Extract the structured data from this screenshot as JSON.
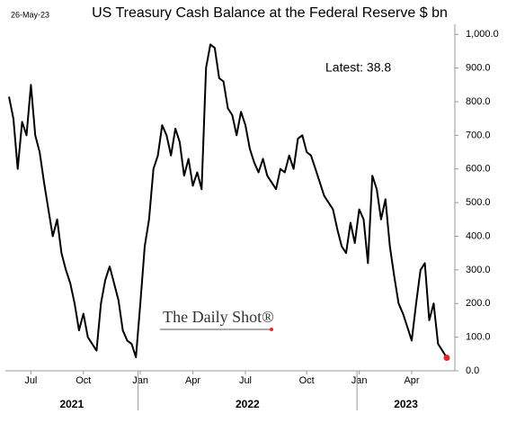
{
  "chart_data": {
    "type": "line",
    "title": "US Treasury Cash Balance at the Federal Reserve $ bn",
    "date": "26-May-23",
    "annotation": "Latest:  38.8",
    "watermark": "The Daily Shot®",
    "color": "#000000",
    "highlight_color": "#e8262a",
    "categories": [
      null,
      null,
      null,
      null,
      null,
      "Jul",
      null,
      null,
      null,
      null,
      null,
      null,
      null,
      null,
      null,
      null,
      null,
      "Oct",
      null,
      null,
      null,
      null,
      null,
      null,
      null,
      null,
      null,
      null,
      null,
      null,
      "Jan",
      null,
      null,
      null,
      null,
      null,
      null,
      null,
      null,
      null,
      null,
      null,
      "Apr",
      null,
      null,
      null,
      null,
      null,
      null,
      null,
      null,
      null,
      null,
      null,
      "Jul",
      null,
      null,
      null,
      null,
      null,
      null,
      null,
      null,
      null,
      null,
      null,
      null,
      null,
      "Oct",
      null,
      null,
      null,
      null,
      null,
      null,
      null,
      null,
      null,
      null,
      null,
      "Jan",
      null,
      null,
      null,
      null,
      null,
      null,
      null,
      null,
      null,
      null,
      null,
      "Apr",
      null,
      null,
      null,
      null,
      null,
      null,
      null,
      null
    ],
    "values": [
      815,
      750,
      600,
      740,
      700,
      850,
      700,
      650,
      560,
      480,
      400,
      450,
      350,
      300,
      260,
      200,
      120,
      170,
      100,
      80,
      60,
      200,
      270,
      310,
      260,
      210,
      120,
      90,
      80,
      40,
      200,
      370,
      450,
      600,
      640,
      730,
      700,
      640,
      720,
      680,
      580,
      630,
      550,
      590,
      540,
      900,
      970,
      960,
      870,
      860,
      780,
      760,
      700,
      770,
      730,
      660,
      620,
      590,
      630,
      580,
      560,
      540,
      600,
      590,
      640,
      600,
      690,
      700,
      650,
      640,
      600,
      560,
      520,
      500,
      480,
      420,
      370,
      350,
      440,
      380,
      480,
      450,
      320,
      580,
      540,
      450,
      510,
      370,
      280,
      200,
      170,
      130,
      90,
      200,
      300,
      320,
      150,
      200,
      80,
      60,
      38.8
    ],
    "x_groups": [
      "2021",
      "2022",
      "2023"
    ],
    "ylim": [
      0,
      1030
    ],
    "yticks": [
      {
        "value": 0,
        "label": "0.0"
      },
      {
        "value": 100,
        "label": "100.0"
      },
      {
        "value": 200,
        "label": "200.0"
      },
      {
        "value": 300,
        "label": "300.0"
      },
      {
        "value": 400,
        "label": "400.0"
      },
      {
        "value": 500,
        "label": "500.0"
      },
      {
        "value": 600,
        "label": "600.0"
      },
      {
        "value": 700,
        "label": "700.0"
      },
      {
        "value": 800,
        "label": "800.0"
      },
      {
        "value": 900,
        "label": "900.0"
      },
      {
        "value": 1000,
        "label": "1,000.0"
      }
    ],
    "grid": false
  }
}
